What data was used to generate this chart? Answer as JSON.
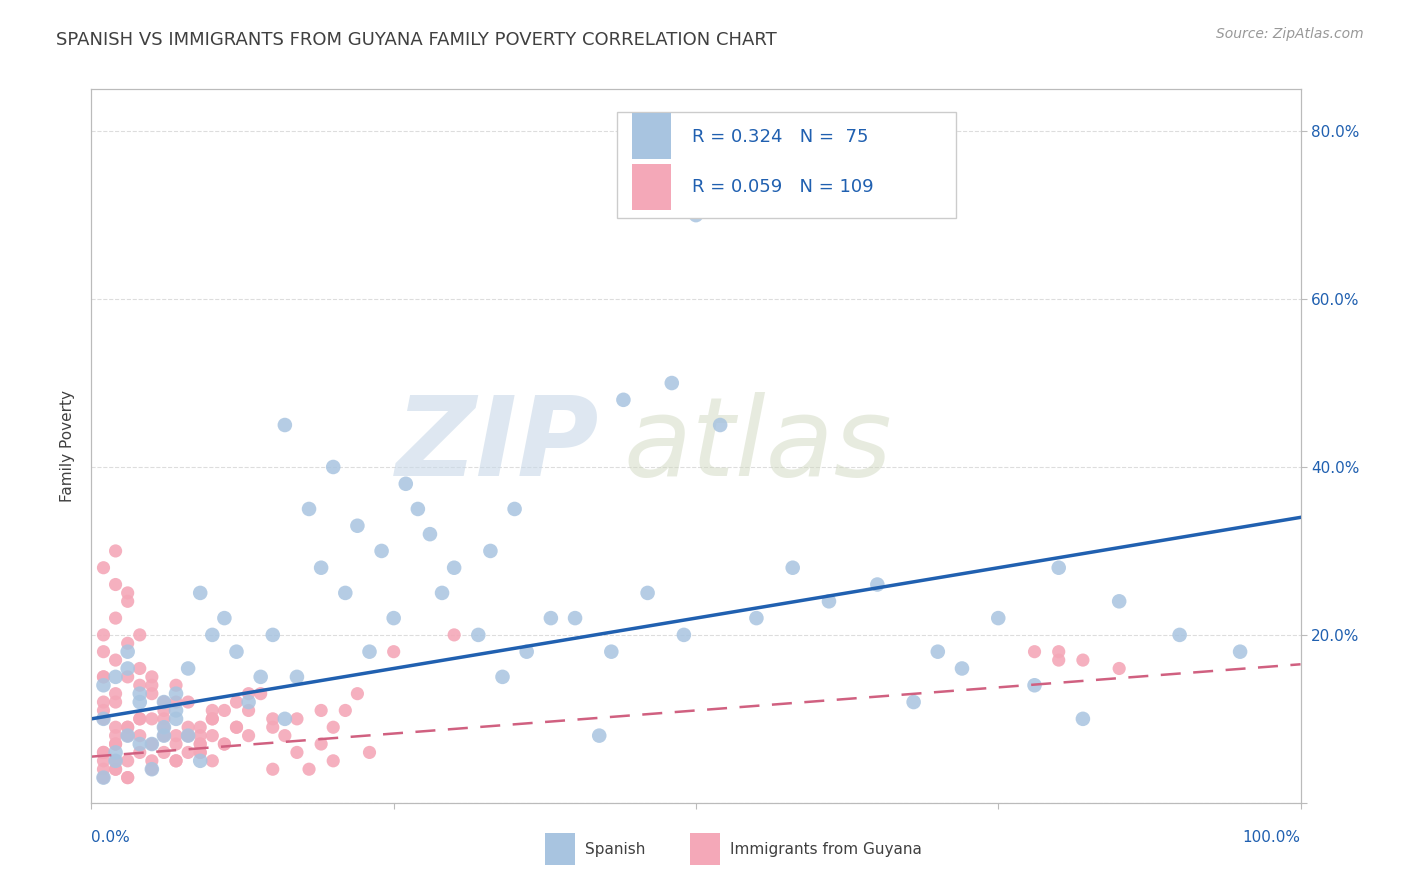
{
  "title": "SPANISH VS IMMIGRANTS FROM GUYANA FAMILY POVERTY CORRELATION CHART",
  "source": "Source: ZipAtlas.com",
  "ylabel": "Family Poverty",
  "xlim": [
    0,
    1.0
  ],
  "ylim": [
    0,
    0.85
  ],
  "yticks": [
    0.0,
    0.2,
    0.4,
    0.6,
    0.8
  ],
  "right_ytick_labels": [
    "",
    "20.0%",
    "40.0%",
    "60.0%",
    "80.0%"
  ],
  "spanish_R": 0.324,
  "spanish_N": 75,
  "guyana_R": 0.059,
  "guyana_N": 109,
  "spanish_color": "#a8c4e0",
  "spanish_line_color": "#2060b0",
  "guyana_color": "#f4a8b8",
  "guyana_line_color": "#d06080",
  "legend_text_color": "#2060b0",
  "title_color": "#404040",
  "axis_color": "#bbbbbb",
  "grid_color": "#dddddd",
  "spanish_x": [
    0.02,
    0.01,
    0.03,
    0.04,
    0.02,
    0.05,
    0.03,
    0.01,
    0.06,
    0.04,
    0.02,
    0.07,
    0.05,
    0.03,
    0.08,
    0.01,
    0.06,
    0.04,
    0.09,
    0.07,
    0.15,
    0.18,
    0.2,
    0.17,
    0.22,
    0.19,
    0.16,
    0.24,
    0.21,
    0.26,
    0.23,
    0.28,
    0.25,
    0.3,
    0.27,
    0.32,
    0.29,
    0.34,
    0.36,
    0.38,
    0.12,
    0.14,
    0.11,
    0.13,
    0.1,
    0.16,
    0.08,
    0.09,
    0.07,
    0.06,
    0.4,
    0.43,
    0.46,
    0.49,
    0.52,
    0.55,
    0.58,
    0.61,
    0.35,
    0.33,
    0.65,
    0.7,
    0.75,
    0.8,
    0.85,
    0.9,
    0.95,
    0.5,
    0.48,
    0.44,
    0.68,
    0.72,
    0.78,
    0.82,
    0.42
  ],
  "spanish_y": [
    0.05,
    0.1,
    0.08,
    0.12,
    0.15,
    0.07,
    0.18,
    0.03,
    0.09,
    0.13,
    0.06,
    0.11,
    0.04,
    0.16,
    0.08,
    0.14,
    0.12,
    0.07,
    0.05,
    0.1,
    0.2,
    0.35,
    0.4,
    0.15,
    0.33,
    0.28,
    0.45,
    0.3,
    0.25,
    0.38,
    0.18,
    0.32,
    0.22,
    0.28,
    0.35,
    0.2,
    0.25,
    0.15,
    0.18,
    0.22,
    0.18,
    0.15,
    0.22,
    0.12,
    0.2,
    0.1,
    0.16,
    0.25,
    0.13,
    0.08,
    0.22,
    0.18,
    0.25,
    0.2,
    0.45,
    0.22,
    0.28,
    0.24,
    0.35,
    0.3,
    0.26,
    0.18,
    0.22,
    0.28,
    0.24,
    0.2,
    0.18,
    0.7,
    0.5,
    0.48,
    0.12,
    0.16,
    0.14,
    0.1,
    0.08
  ],
  "guyana_x": [
    0.01,
    0.02,
    0.01,
    0.03,
    0.02,
    0.01,
    0.04,
    0.03,
    0.02,
    0.01,
    0.02,
    0.01,
    0.03,
    0.02,
    0.04,
    0.03,
    0.01,
    0.02,
    0.05,
    0.04,
    0.06,
    0.05,
    0.07,
    0.06,
    0.08,
    0.07,
    0.09,
    0.08,
    0.1,
    0.09,
    0.03,
    0.04,
    0.05,
    0.06,
    0.07,
    0.08,
    0.09,
    0.1,
    0.11,
    0.12,
    0.13,
    0.14,
    0.15,
    0.16,
    0.17,
    0.18,
    0.19,
    0.2,
    0.21,
    0.22,
    0.01,
    0.02,
    0.01,
    0.03,
    0.02,
    0.01,
    0.02,
    0.03,
    0.01,
    0.02,
    0.04,
    0.05,
    0.06,
    0.04,
    0.07,
    0.08,
    0.05,
    0.09,
    0.06,
    0.1,
    0.25,
    0.3,
    0.8,
    0.85,
    0.8,
    0.82,
    0.78,
    0.15,
    0.2,
    0.23,
    0.01,
    0.02,
    0.03,
    0.01,
    0.02,
    0.04,
    0.03,
    0.05,
    0.02,
    0.01,
    0.06,
    0.07,
    0.08,
    0.09,
    0.1,
    0.11,
    0.12,
    0.13,
    0.03,
    0.05,
    0.07,
    0.09,
    0.11,
    0.13,
    0.15,
    0.17,
    0.19,
    0.1,
    0.12
  ],
  "guyana_y": [
    0.05,
    0.08,
    0.12,
    0.03,
    0.07,
    0.1,
    0.14,
    0.15,
    0.09,
    0.06,
    0.04,
    0.11,
    0.08,
    0.13,
    0.06,
    0.09,
    0.15,
    0.12,
    0.07,
    0.1,
    0.08,
    0.13,
    0.05,
    0.11,
    0.09,
    0.14,
    0.07,
    0.12,
    0.1,
    0.08,
    0.25,
    0.2,
    0.15,
    0.1,
    0.12,
    0.08,
    0.06,
    0.05,
    0.07,
    0.09,
    0.11,
    0.13,
    0.1,
    0.08,
    0.06,
    0.04,
    0.07,
    0.09,
    0.11,
    0.13,
    0.28,
    0.22,
    0.18,
    0.24,
    0.26,
    0.15,
    0.17,
    0.19,
    0.2,
    0.3,
    0.16,
    0.14,
    0.12,
    0.1,
    0.08,
    0.06,
    0.05,
    0.07,
    0.09,
    0.11,
    0.18,
    0.2,
    0.17,
    0.16,
    0.18,
    0.17,
    0.18,
    0.04,
    0.05,
    0.06,
    0.03,
    0.04,
    0.05,
    0.06,
    0.07,
    0.08,
    0.09,
    0.1,
    0.05,
    0.04,
    0.06,
    0.07,
    0.08,
    0.09,
    0.1,
    0.11,
    0.12,
    0.13,
    0.03,
    0.04,
    0.05,
    0.06,
    0.07,
    0.08,
    0.09,
    0.1,
    0.11,
    0.08,
    0.09
  ],
  "sp_line_x0": 0.0,
  "sp_line_y0": 0.1,
  "sp_line_x1": 1.0,
  "sp_line_y1": 0.34,
  "gy_line_x0": 0.0,
  "gy_line_y0": 0.055,
  "gy_line_x1": 1.0,
  "gy_line_y1": 0.165
}
